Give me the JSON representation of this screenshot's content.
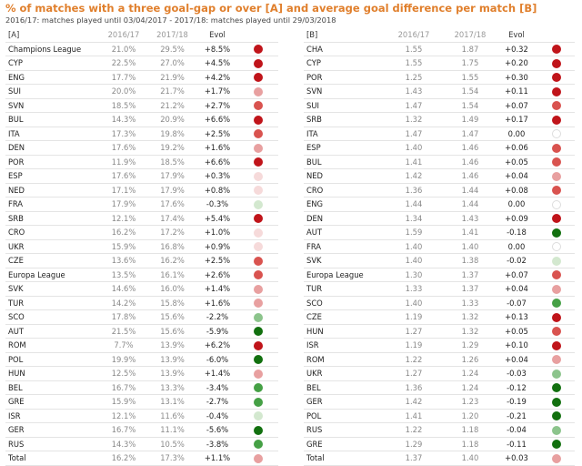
{
  "title": "% of matches with a three goal-gap or over [A] and average goal difference per match [B]",
  "subtitle": "2016/17: matches played until 03/04/2017 - 2017/18: matches played until 29/03/2018",
  "colors": {
    "dark_red": "#c0141a",
    "red": "#d9534f",
    "light_red": "#e8a0a0",
    "pale_red": "#f6dada",
    "neutral": "#ffffff",
    "pale_green": "#d3e8cf",
    "light_green": "#8cc48c",
    "green": "#45a045",
    "dark_green": "#12700f"
  },
  "table_a": {
    "headers": [
      "[A]",
      "2016/17",
      "2017/18",
      "Evol"
    ],
    "rows": [
      {
        "label": "Champions League",
        "v1": "21.0%",
        "v2": "29.5%",
        "evol": "+8.5%",
        "dot": "dark_red"
      },
      {
        "label": "CYP",
        "v1": "22.5%",
        "v2": "27.0%",
        "evol": "+4.5%",
        "dot": "dark_red"
      },
      {
        "label": "ENG",
        "v1": "17.7%",
        "v2": "21.9%",
        "evol": "+4.2%",
        "dot": "dark_red"
      },
      {
        "label": "SUI",
        "v1": "20.0%",
        "v2": "21.7%",
        "evol": "+1.7%",
        "dot": "light_red"
      },
      {
        "label": "SVN",
        "v1": "18.5%",
        "v2": "21.2%",
        "evol": "+2.7%",
        "dot": "red"
      },
      {
        "label": "BUL",
        "v1": "14.3%",
        "v2": "20.9%",
        "evol": "+6.6%",
        "dot": "dark_red"
      },
      {
        "label": "ITA",
        "v1": "17.3%",
        "v2": "19.8%",
        "evol": "+2.5%",
        "dot": "red"
      },
      {
        "label": "DEN",
        "v1": "17.6%",
        "v2": "19.2%",
        "evol": "+1.6%",
        "dot": "light_red"
      },
      {
        "label": "POR",
        "v1": "11.9%",
        "v2": "18.5%",
        "evol": "+6.6%",
        "dot": "dark_red"
      },
      {
        "label": "ESP",
        "v1": "17.6%",
        "v2": "17.9%",
        "evol": "+0.3%",
        "dot": "pale_red"
      },
      {
        "label": "NED",
        "v1": "17.1%",
        "v2": "17.9%",
        "evol": "+0.8%",
        "dot": "pale_red"
      },
      {
        "label": "FRA",
        "v1": "17.9%",
        "v2": "17.6%",
        "evol": "-0.3%",
        "dot": "pale_green"
      },
      {
        "label": "SRB",
        "v1": "12.1%",
        "v2": "17.4%",
        "evol": "+5.4%",
        "dot": "dark_red"
      },
      {
        "label": "CRO",
        "v1": "16.2%",
        "v2": "17.2%",
        "evol": "+1.0%",
        "dot": "pale_red"
      },
      {
        "label": "UKR",
        "v1": "15.9%",
        "v2": "16.8%",
        "evol": "+0.9%",
        "dot": "pale_red"
      },
      {
        "label": "CZE",
        "v1": "13.6%",
        "v2": "16.2%",
        "evol": "+2.5%",
        "dot": "red"
      },
      {
        "label": "Europa League",
        "v1": "13.5%",
        "v2": "16.1%",
        "evol": "+2.6%",
        "dot": "red"
      },
      {
        "label": "SVK",
        "v1": "14.6%",
        "v2": "16.0%",
        "evol": "+1.4%",
        "dot": "light_red"
      },
      {
        "label": "TUR",
        "v1": "14.2%",
        "v2": "15.8%",
        "evol": "+1.6%",
        "dot": "light_red"
      },
      {
        "label": "SCO",
        "v1": "17.8%",
        "v2": "15.6%",
        "evol": "-2.2%",
        "dot": "light_green"
      },
      {
        "label": "AUT",
        "v1": "21.5%",
        "v2": "15.6%",
        "evol": "-5.9%",
        "dot": "dark_green"
      },
      {
        "label": "ROM",
        "v1": "7.7%",
        "v2": "13.9%",
        "evol": "+6.2%",
        "dot": "dark_red"
      },
      {
        "label": "POL",
        "v1": "19.9%",
        "v2": "13.9%",
        "evol": "-6.0%",
        "dot": "dark_green"
      },
      {
        "label": "HUN",
        "v1": "12.5%",
        "v2": "13.9%",
        "evol": "+1.4%",
        "dot": "light_red"
      },
      {
        "label": "BEL",
        "v1": "16.7%",
        "v2": "13.3%",
        "evol": "-3.4%",
        "dot": "green"
      },
      {
        "label": "GRE",
        "v1": "15.9%",
        "v2": "13.1%",
        "evol": "-2.7%",
        "dot": "green"
      },
      {
        "label": "ISR",
        "v1": "12.1%",
        "v2": "11.6%",
        "evol": "-0.4%",
        "dot": "pale_green"
      },
      {
        "label": "GER",
        "v1": "16.7%",
        "v2": "11.1%",
        "evol": "-5.6%",
        "dot": "dark_green"
      },
      {
        "label": "RUS",
        "v1": "14.3%",
        "v2": "10.5%",
        "evol": "-3.8%",
        "dot": "green"
      },
      {
        "label": "Total",
        "v1": "16.2%",
        "v2": "17.3%",
        "evol": "+1.1%",
        "dot": "light_red"
      }
    ]
  },
  "table_b": {
    "headers": [
      "[B]",
      "2016/17",
      "2017/18",
      "Evol"
    ],
    "rows": [
      {
        "label": "CHA",
        "v1": "1.55",
        "v2": "1.87",
        "evol": "+0.32",
        "dot": "dark_red"
      },
      {
        "label": "CYP",
        "v1": "1.55",
        "v2": "1.75",
        "evol": "+0.20",
        "dot": "dark_red"
      },
      {
        "label": "POR",
        "v1": "1.25",
        "v2": "1.55",
        "evol": "+0.30",
        "dot": "dark_red"
      },
      {
        "label": "SVN",
        "v1": "1.43",
        "v2": "1.54",
        "evol": "+0.11",
        "dot": "dark_red"
      },
      {
        "label": "SUI",
        "v1": "1.47",
        "v2": "1.54",
        "evol": "+0.07",
        "dot": "red"
      },
      {
        "label": "SRB",
        "v1": "1.32",
        "v2": "1.49",
        "evol": "+0.17",
        "dot": "dark_red"
      },
      {
        "label": "ITA",
        "v1": "1.47",
        "v2": "1.47",
        "evol": "0.00",
        "dot": "neutral"
      },
      {
        "label": "ESP",
        "v1": "1.40",
        "v2": "1.46",
        "evol": "+0.06",
        "dot": "red"
      },
      {
        "label": "BUL",
        "v1": "1.41",
        "v2": "1.46",
        "evol": "+0.05",
        "dot": "red"
      },
      {
        "label": "NED",
        "v1": "1.42",
        "v2": "1.46",
        "evol": "+0.04",
        "dot": "light_red"
      },
      {
        "label": "CRO",
        "v1": "1.36",
        "v2": "1.44",
        "evol": "+0.08",
        "dot": "red"
      },
      {
        "label": "ENG",
        "v1": "1.44",
        "v2": "1.44",
        "evol": "0.00",
        "dot": "neutral"
      },
      {
        "label": "DEN",
        "v1": "1.34",
        "v2": "1.43",
        "evol": "+0.09",
        "dot": "dark_red"
      },
      {
        "label": "AUT",
        "v1": "1.59",
        "v2": "1.41",
        "evol": "-0.18",
        "dot": "dark_green"
      },
      {
        "label": "FRA",
        "v1": "1.40",
        "v2": "1.40",
        "evol": "0.00",
        "dot": "neutral"
      },
      {
        "label": "SVK",
        "v1": "1.40",
        "v2": "1.38",
        "evol": "-0.02",
        "dot": "pale_green"
      },
      {
        "label": "Europa League",
        "v1": "1.30",
        "v2": "1.37",
        "evol": "+0.07",
        "dot": "red"
      },
      {
        "label": "TUR",
        "v1": "1.33",
        "v2": "1.37",
        "evol": "+0.04",
        "dot": "light_red"
      },
      {
        "label": "SCO",
        "v1": "1.40",
        "v2": "1.33",
        "evol": "-0.07",
        "dot": "green"
      },
      {
        "label": "CZE",
        "v1": "1.19",
        "v2": "1.32",
        "evol": "+0.13",
        "dot": "dark_red"
      },
      {
        "label": "HUN",
        "v1": "1.27",
        "v2": "1.32",
        "evol": "+0.05",
        "dot": "red"
      },
      {
        "label": "ISR",
        "v1": "1.19",
        "v2": "1.29",
        "evol": "+0.10",
        "dot": "dark_red"
      },
      {
        "label": "ROM",
        "v1": "1.22",
        "v2": "1.26",
        "evol": "+0.04",
        "dot": "light_red"
      },
      {
        "label": "UKR",
        "v1": "1.27",
        "v2": "1.24",
        "evol": "-0.03",
        "dot": "light_green"
      },
      {
        "label": "BEL",
        "v1": "1.36",
        "v2": "1.24",
        "evol": "-0.12",
        "dot": "dark_green"
      },
      {
        "label": "GER",
        "v1": "1.42",
        "v2": "1.23",
        "evol": "-0.19",
        "dot": "dark_green"
      },
      {
        "label": "POL",
        "v1": "1.41",
        "v2": "1.20",
        "evol": "-0.21",
        "dot": "dark_green"
      },
      {
        "label": "RUS",
        "v1": "1.22",
        "v2": "1.18",
        "evol": "-0.04",
        "dot": "light_green"
      },
      {
        "label": "GRE",
        "v1": "1.29",
        "v2": "1.18",
        "evol": "-0.11",
        "dot": "dark_green"
      },
      {
        "label": "Total",
        "v1": "1.37",
        "v2": "1.40",
        "evol": "+0.03",
        "dot": "light_red"
      }
    ]
  }
}
